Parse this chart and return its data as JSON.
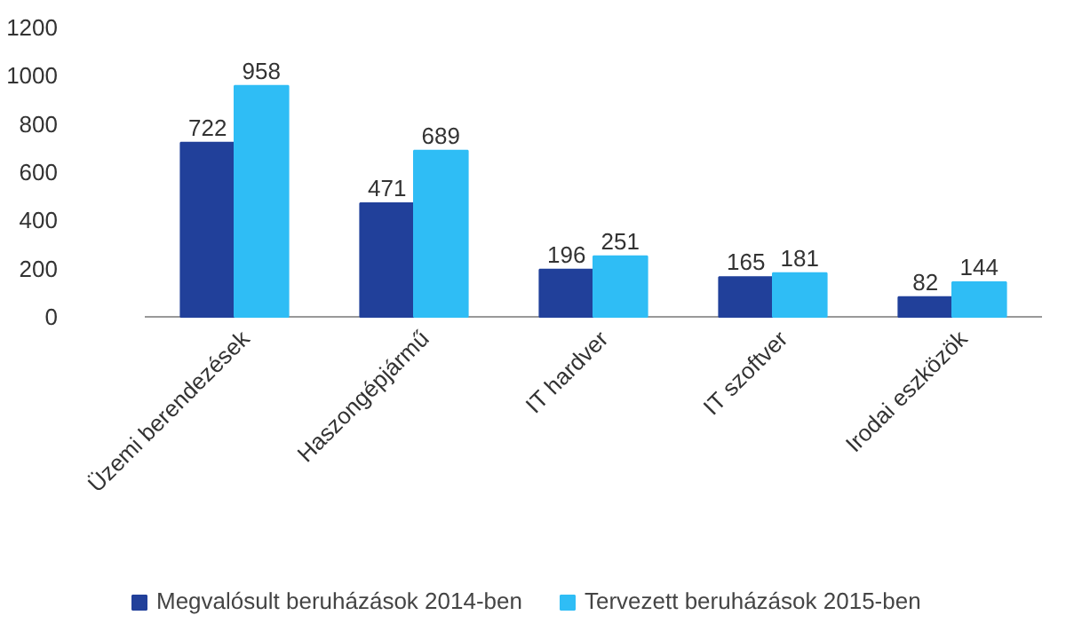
{
  "chart_data": {
    "type": "bar",
    "categories": [
      "Üzemi berendezések",
      "Haszongépjármű",
      "IT hardver",
      "IT szoftver",
      "Irodai eszközök"
    ],
    "series": [
      {
        "name": "Megvalósult beruházások 2014-ben",
        "color": "#21409a",
        "values": [
          722,
          471,
          196,
          165,
          82
        ]
      },
      {
        "name": "Tervezett beruházások 2015-ben",
        "color": "#2fbdf5",
        "values": [
          958,
          689,
          251,
          181,
          144
        ]
      }
    ],
    "ylim": [
      0,
      1200
    ],
    "yticks": [
      0,
      200,
      400,
      600,
      800,
      1000,
      1200
    ],
    "grid": false,
    "legend": "bottom",
    "data_labels": true
  }
}
